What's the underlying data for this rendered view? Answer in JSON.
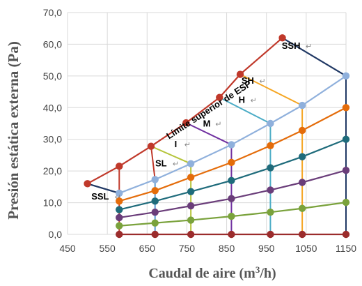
{
  "chart_data": {
    "type": "line",
    "xlabel": "Caudal de aire (m³/h)",
    "xlabel_parts": {
      "pre": "Caudal de aire (m",
      "sup": "3",
      "post": "/h)"
    },
    "ylabel": "Presión estática externa (Pa)",
    "xlim": [
      450,
      1150
    ],
    "ylim": [
      0,
      70
    ],
    "x_ticks": [
      "450",
      "550",
      "650",
      "750",
      "850",
      "950",
      "1050",
      "1150"
    ],
    "y_ticks": [
      "0,0",
      "10,0",
      "20,0",
      "30,0",
      "40,0",
      "50,0",
      "60,0",
      "70,0"
    ],
    "grid": true,
    "legend": "none",
    "series": [
      {
        "color": "#c0392b",
        "x": [
          500,
          580,
          660,
          748,
          832,
          884,
          990
        ],
        "y": [
          16,
          21.5,
          27.8,
          35.2,
          43.2,
          50.5,
          62
        ]
      },
      {
        "color": "#203864",
        "x": [
          990,
          1150
        ],
        "y": [
          62,
          50
        ]
      },
      {
        "color": "#203864",
        "x": [
          500,
          580
        ],
        "y": [
          16,
          13
        ]
      },
      {
        "color": "#8fb0dc",
        "x": [
          580,
          670,
          760,
          862,
          960,
          1040,
          1150
        ],
        "y": [
          13,
          17.3,
          22.3,
          28.3,
          35,
          40.7,
          50
        ]
      },
      {
        "color": "#e46c0a",
        "x": [
          580,
          670,
          760,
          862,
          960,
          1040,
          1150
        ],
        "y": [
          10.5,
          13.8,
          18,
          22.7,
          28,
          32.8,
          40
        ]
      },
      {
        "color": "#1e6b7b",
        "x": [
          580,
          670,
          760,
          862,
          960,
          1040,
          1150
        ],
        "y": [
          7.8,
          10.5,
          13.5,
          17,
          21,
          24.5,
          30
        ]
      },
      {
        "color": "#6a3d7a",
        "x": [
          580,
          670,
          760,
          862,
          960,
          1040,
          1150
        ],
        "y": [
          5.3,
          7,
          9,
          11.3,
          14,
          16.4,
          20.2
        ]
      },
      {
        "color": "#7aa23c",
        "x": [
          580,
          670,
          760,
          862,
          960,
          1040,
          1150
        ],
        "y": [
          2.7,
          3.6,
          4.5,
          5.7,
          7,
          8.2,
          10.1
        ]
      },
      {
        "color": "#9b2c2c",
        "x": [
          580,
          670,
          760,
          862,
          960,
          1040,
          1150
        ],
        "y": [
          0,
          0,
          0,
          0,
          0,
          0,
          0
        ]
      }
    ],
    "verticals": [
      {
        "color": "#c0392b",
        "x": 580,
        "y": [
          0,
          21.5
        ]
      },
      {
        "color": "#5b9bd5",
        "x": 670,
        "y": [
          0,
          17.3
        ]
      },
      {
        "color": "#b5c43a",
        "x": 760,
        "y": [
          0,
          22.3
        ]
      },
      {
        "color": "#7030a0",
        "x": 862,
        "y": [
          0,
          28.3
        ]
      },
      {
        "color": "#4bacc6",
        "x": 960,
        "y": [
          0,
          35
        ]
      },
      {
        "color": "#f5a623",
        "x": 1040,
        "y": [
          0,
          40.7
        ]
      },
      {
        "color": "#203864",
        "x": 1150,
        "y": [
          0,
          50
        ]
      }
    ],
    "boundaries": [
      {
        "color": "#203864",
        "x": [
          500,
          580
        ],
        "y": [
          16,
          13
        ]
      },
      {
        "color": "#c0392b",
        "x": [
          660,
          670
        ],
        "y": [
          27.8,
          17.3
        ]
      },
      {
        "color": "#b5c43a",
        "x": [
          660,
          760
        ],
        "y": [
          27.8,
          22.3
        ]
      },
      {
        "color": "#7030a0",
        "x": [
          748,
          862
        ],
        "y": [
          35.2,
          28.3
        ]
      },
      {
        "color": "#4bacc6",
        "x": [
          832,
          960
        ],
        "y": [
          43.2,
          35
        ]
      },
      {
        "color": "#f5a623",
        "x": [
          884,
          1040
        ],
        "y": [
          50.5,
          40.7
        ]
      }
    ],
    "annotations": [
      {
        "text": "SSH",
        "x": 1012,
        "y": 58.5
      },
      {
        "text": "SH",
        "x": 903,
        "y": 47.5
      },
      {
        "text": "H",
        "x": 888,
        "y": 41.5
      },
      {
        "text": "M",
        "x": 800,
        "y": 34
      },
      {
        "text": "I",
        "x": 722,
        "y": 27.5
      },
      {
        "text": "SL",
        "x": 685,
        "y": 21.5
      },
      {
        "text": "SSL",
        "x": 532,
        "y": 11
      }
    ],
    "boundary_label": {
      "text": "Límite superior de ESP",
      "x": 705,
      "y": 30,
      "angle": -33
    }
  }
}
